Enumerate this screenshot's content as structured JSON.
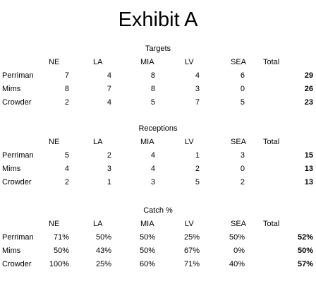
{
  "title": "Exhibit A",
  "teams": [
    "NE",
    "LA",
    "MIA",
    "LV",
    "SEA"
  ],
  "total_label": "Total",
  "players": [
    "Perriman",
    "Mims",
    "Crowder"
  ],
  "sections": [
    {
      "title": "Targets",
      "rows": [
        {
          "values": [
            "7",
            "4",
            "8",
            "4",
            "6"
          ],
          "total": "29"
        },
        {
          "values": [
            "8",
            "7",
            "8",
            "3",
            "0"
          ],
          "total": "26"
        },
        {
          "values": [
            "2",
            "4",
            "5",
            "7",
            "5"
          ],
          "total": "23"
        }
      ]
    },
    {
      "title": "Receptions",
      "rows": [
        {
          "values": [
            "5",
            "2",
            "4",
            "1",
            "3"
          ],
          "total": "15"
        },
        {
          "values": [
            "4",
            "3",
            "4",
            "2",
            "0"
          ],
          "total": "13"
        },
        {
          "values": [
            "2",
            "1",
            "3",
            "5",
            "2"
          ],
          "total": "13"
        }
      ]
    },
    {
      "title": "Catch %",
      "rows": [
        {
          "values": [
            "71%",
            "50%",
            "50%",
            "25%",
            "50%"
          ],
          "total": "52%"
        },
        {
          "values": [
            "50%",
            "43%",
            "50%",
            "67%",
            "0%"
          ],
          "total": "50%"
        },
        {
          "values": [
            "100%",
            "25%",
            "60%",
            "71%",
            "40%"
          ],
          "total": "57%"
        }
      ]
    }
  ]
}
